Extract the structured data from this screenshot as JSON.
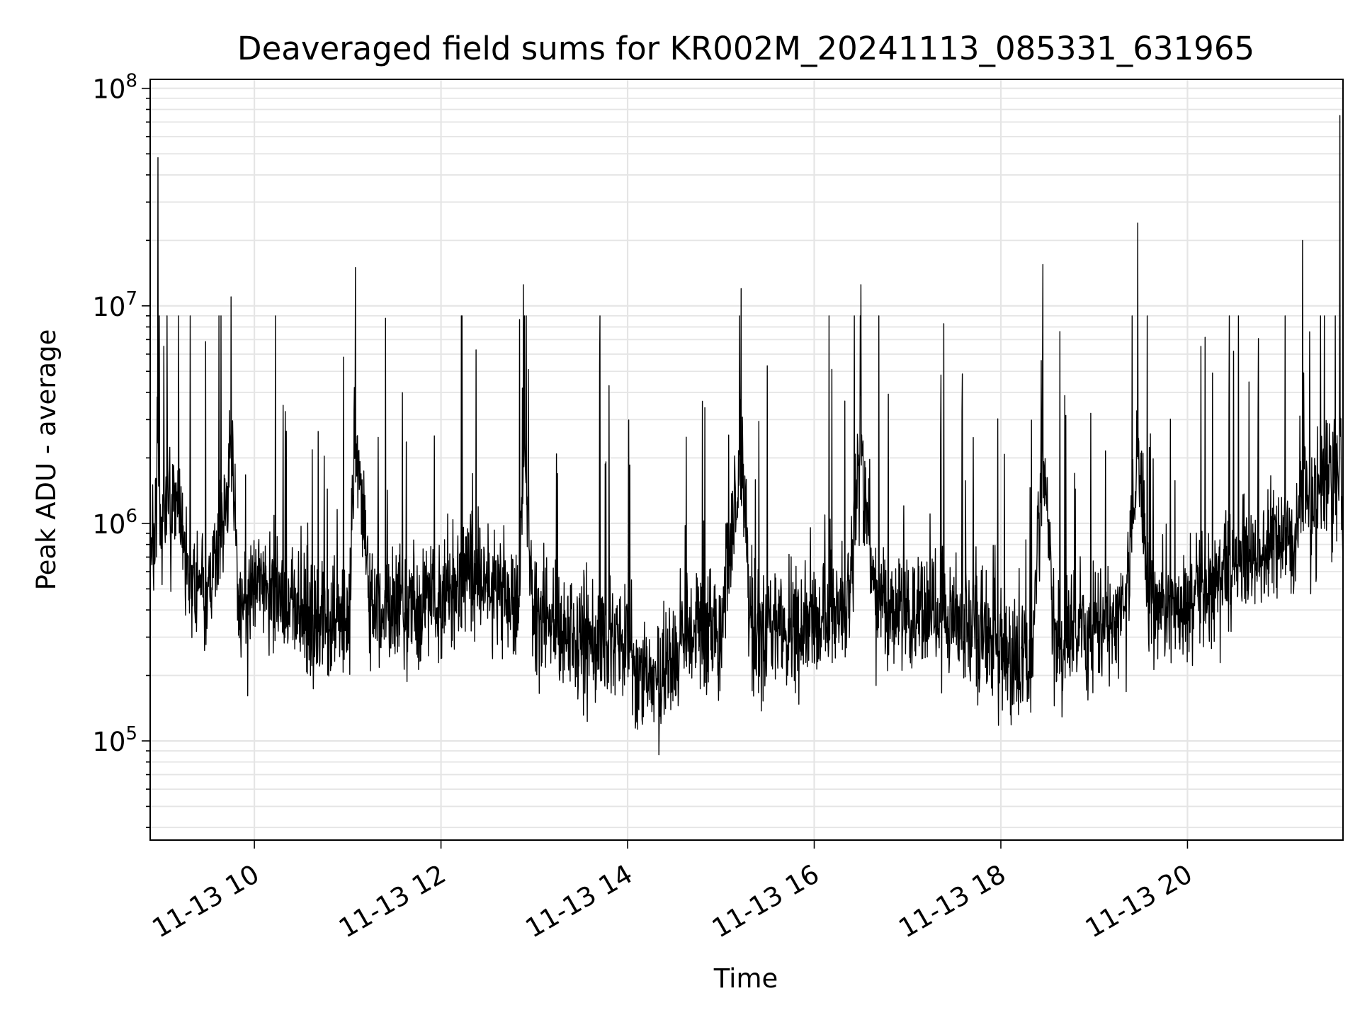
{
  "chart_data": {
    "type": "line",
    "title": "Deaveraged field sums for KR002M_20241113_085331_631965",
    "xlabel": "Time",
    "ylabel": "Peak ADU - average",
    "yscale": "log",
    "grid": true,
    "line_color": "#000000",
    "grid_color": "#e5e5e5",
    "xlim": [
      "2024-11-13 08:53",
      "2024-11-13 21:40"
    ],
    "ylim": [
      35000,
      110000000
    ],
    "x_ticks": [
      "2024-11-13 10:00",
      "2024-11-13 12:00",
      "2024-11-13 14:00",
      "2024-11-13 16:00",
      "2024-11-13 18:00",
      "2024-11-13 20:00"
    ],
    "x_tick_labels": [
      "11-13 10",
      "11-13 12",
      "11-13 14",
      "11-13 16",
      "11-13 18",
      "11-13 20"
    ],
    "y_ticks": [
      100000,
      1000000,
      10000000,
      100000000
    ],
    "y_tick_labels": [
      {
        "base": "10",
        "exp": "5"
      },
      {
        "base": "10",
        "exp": "6"
      },
      {
        "base": "10",
        "exp": "7"
      },
      {
        "base": "10",
        "exp": "8"
      }
    ],
    "series": [
      {
        "x": [
          "2024-11-13 08:53",
          "2024-11-13 08:55",
          "2024-11-13 08:58",
          "2024-11-13 09:00",
          "2024-11-13 09:03",
          "2024-11-13 09:06",
          "2024-11-13 09:10",
          "2024-11-13 09:15",
          "2024-11-13 09:20",
          "2024-11-13 09:25",
          "2024-11-13 09:30",
          "2024-11-13 09:36",
          "2024-11-13 09:40",
          "2024-11-13 09:45",
          "2024-11-13 09:50",
          "2024-11-13 09:55",
          "2024-11-13 10:00",
          "2024-11-13 10:03",
          "2024-11-13 10:10",
          "2024-11-13 10:20",
          "2024-11-13 10:30",
          "2024-11-13 10:40",
          "2024-11-13 10:50",
          "2024-11-13 10:55",
          "2024-11-13 11:00",
          "2024-11-13 11:05",
          "2024-11-13 11:15",
          "2024-11-13 11:25",
          "2024-11-13 11:32",
          "2024-11-13 11:40",
          "2024-11-13 11:50",
          "2024-11-13 12:00",
          "2024-11-13 12:10",
          "2024-11-13 12:20",
          "2024-11-13 12:30",
          "2024-11-13 12:40",
          "2024-11-13 12:50",
          "2024-11-13 12:53",
          "2024-11-13 13:00",
          "2024-11-13 13:10",
          "2024-11-13 13:20",
          "2024-11-13 13:30",
          "2024-11-13 13:40",
          "2024-11-13 13:50",
          "2024-11-13 14:00",
          "2024-11-13 14:05",
          "2024-11-13 14:15",
          "2024-11-13 14:25",
          "2024-11-13 14:35",
          "2024-11-13 14:45",
          "2024-11-13 15:00",
          "2024-11-13 15:13",
          "2024-11-13 15:20",
          "2024-11-13 15:30",
          "2024-11-13 15:40",
          "2024-11-13 15:50",
          "2024-11-13 16:00",
          "2024-11-13 16:10",
          "2024-11-13 16:20",
          "2024-11-13 16:30",
          "2024-11-13 16:40",
          "2024-11-13 16:50",
          "2024-11-13 17:00",
          "2024-11-13 17:10",
          "2024-11-13 17:20",
          "2024-11-13 17:30",
          "2024-11-13 17:40",
          "2024-11-13 17:50",
          "2024-11-13 18:00",
          "2024-11-13 18:10",
          "2024-11-13 18:20",
          "2024-11-13 18:27",
          "2024-11-13 18:35",
          "2024-11-13 18:45",
          "2024-11-13 19:00",
          "2024-11-13 19:10",
          "2024-11-13 19:20",
          "2024-11-13 19:28",
          "2024-11-13 19:35",
          "2024-11-13 19:45",
          "2024-11-13 20:00",
          "2024-11-13 20:10",
          "2024-11-13 20:20",
          "2024-11-13 20:30",
          "2024-11-13 20:40",
          "2024-11-13 20:50",
          "2024-11-13 21:00",
          "2024-11-13 21:10",
          "2024-11-13 21:14",
          "2024-11-13 21:20",
          "2024-11-13 21:25",
          "2024-11-13 21:30",
          "2024-11-13 21:35",
          "2024-11-13 21:38",
          "2024-11-13 21:40"
        ],
        "y": [
          1200000,
          650000,
          48000000,
          900000,
          1400000,
          1100000,
          1300000,
          800000,
          450000,
          600000,
          500000,
          700000,
          900000,
          11000000,
          400000,
          350000,
          500000,
          600000,
          450000,
          400000,
          420000,
          380000,
          380000,
          400000,
          300000,
          15000000,
          400000,
          380000,
          450000,
          380000,
          500000,
          450000,
          550000,
          600000,
          500000,
          480000,
          400000,
          12500000,
          380000,
          350000,
          300000,
          320000,
          280000,
          300000,
          260000,
          220000,
          200000,
          220000,
          250000,
          320000,
          300000,
          12000000,
          330000,
          320000,
          340000,
          360000,
          330000,
          380000,
          380000,
          12500000,
          380000,
          420000,
          400000,
          420000,
          400000,
          340000,
          300000,
          320000,
          280000,
          240000,
          230000,
          15500000,
          300000,
          320000,
          340000,
          380000,
          400000,
          24000000,
          420000,
          450000,
          460000,
          520000,
          550000,
          650000,
          700000,
          750000,
          800000,
          850000,
          20000000,
          1000000,
          1400000,
          1700000,
          1600000,
          75000000,
          800000
        ]
      }
    ]
  }
}
